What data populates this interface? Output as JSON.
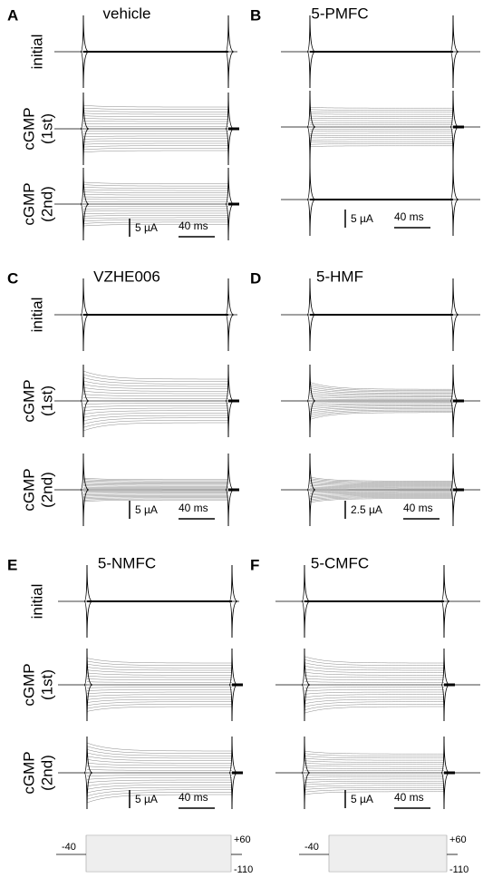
{
  "panels": [
    {
      "letter": "A",
      "title": "vehicle",
      "row_labels": [
        [
          "initial"
        ],
        [
          "cGMP",
          "(1st)"
        ],
        [
          "cGMP",
          "(2nd)"
        ]
      ],
      "scale_current": "5 µA",
      "scale_time": "40 ms"
    },
    {
      "letter": "B",
      "title": "5-PMFC",
      "scale_current": "5 µA",
      "scale_time": "40 ms"
    },
    {
      "letter": "C",
      "title": "VZHE006",
      "row_labels": [
        [
          "initial"
        ],
        [
          "cGMP",
          "(1st)"
        ],
        [
          "cGMP",
          "(2nd)"
        ]
      ],
      "scale_current": "5 µA",
      "scale_time": "40 ms"
    },
    {
      "letter": "D",
      "title": "5-HMF",
      "scale_current": "2.5 µA",
      "scale_time": "40 ms"
    },
    {
      "letter": "E",
      "title": "5-NMFC",
      "row_labels": [
        [
          "initial"
        ],
        [
          "cGMP",
          "(1st)"
        ],
        [
          "cGMP",
          "(2nd)"
        ]
      ],
      "scale_current": "5 µA",
      "scale_time": "40 ms"
    },
    {
      "letter": "F",
      "title": "5-CMFC",
      "scale_current": "5 µA",
      "scale_time": "40 ms"
    }
  ],
  "protocol": [
    {
      "start": "-40",
      "high": "+60",
      "low": "-110"
    },
    {
      "start": "-40",
      "high": "+60",
      "low": "-110"
    }
  ]
}
